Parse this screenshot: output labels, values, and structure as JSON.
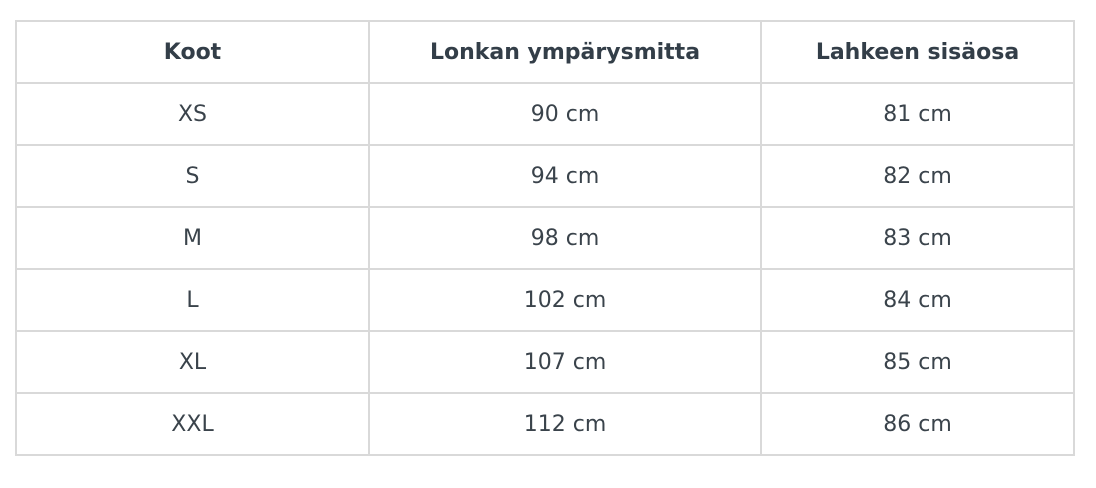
{
  "table": {
    "headers": [
      "Koot",
      "Lonkan ympärysmitta",
      "Lahkeen sisäosa"
    ],
    "rows": [
      [
        "XS",
        "90 cm",
        "81 cm"
      ],
      [
        "S",
        "94 cm",
        "82 cm"
      ],
      [
        "M",
        "98 cm",
        "83 cm"
      ],
      [
        "L",
        "102 cm",
        "84 cm"
      ],
      [
        "XL",
        "107 cm",
        "85 cm"
      ],
      [
        "XXL",
        "112 cm",
        "86 cm"
      ]
    ]
  }
}
